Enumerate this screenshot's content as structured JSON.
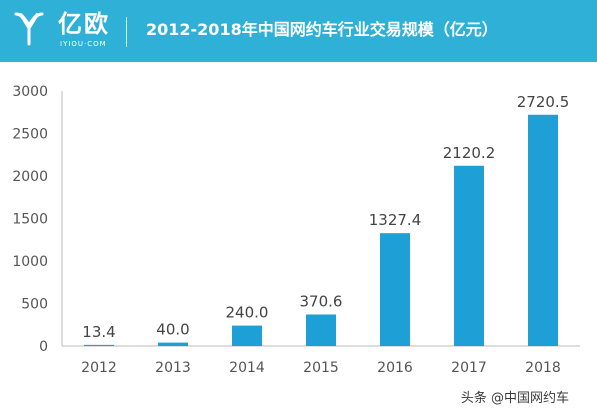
{
  "header": {
    "brand_name": "亿欧",
    "brand_sub": "IYIOU·COM",
    "title": "2012-2018年中国网约车行业交易规模（亿元）",
    "background_color": "#2fb0d6"
  },
  "watermark": "头条 @中国网约车",
  "chart_data": {
    "type": "bar",
    "title": "2012-2018年中国网约车行业交易规模（亿元）",
    "categories": [
      "2012",
      "2013",
      "2014",
      "2015",
      "2016",
      "2017",
      "2018"
    ],
    "values": [
      13.4,
      40.0,
      240.0,
      370.6,
      1327.4,
      2120.2,
      2720.5
    ],
    "value_labels": [
      "13.4",
      "40.0",
      "240.0",
      "370.6",
      "1327.4",
      "2120.2",
      "2720.5"
    ],
    "yticks": [
      "0",
      "500",
      "1000",
      "1500",
      "2000",
      "2500",
      "3000"
    ],
    "ylim": [
      0,
      3000
    ],
    "bar_color": "#1e9fd6",
    "grid": false,
    "legend": "none"
  }
}
